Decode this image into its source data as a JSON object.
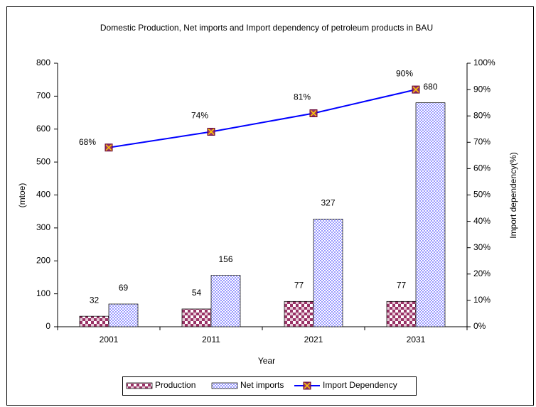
{
  "chart_data": {
    "type": "bar",
    "title": "Domestic Production, Net imports and Import dependency of petroleum products in BAU",
    "categories": [
      "2001",
      "2011",
      "2021",
      "2031"
    ],
    "series": [
      {
        "name": "Production",
        "color": "#993366",
        "values": [
          32,
          54,
          77,
          77
        ]
      },
      {
        "name": "Net imports",
        "color": "#9999ff",
        "values": [
          69,
          156,
          327,
          680
        ]
      },
      {
        "name": "Import Dependency",
        "type": "line",
        "axis": "y2",
        "color": "#0000ff",
        "values": [
          68,
          74,
          81,
          90
        ],
        "value_labels": [
          "68%",
          "74%",
          "81%",
          "90%"
        ]
      }
    ],
    "xlabel": "Year",
    "ylabel": "(mtoe)",
    "y2label": "Import dependency(%)",
    "ylim": [
      0,
      800
    ],
    "yticks": [
      0,
      100,
      200,
      300,
      400,
      500,
      600,
      700,
      800
    ],
    "y2lim": [
      0,
      100
    ],
    "y2ticks": [
      {
        "value": 0,
        "label": "0%"
      },
      {
        "value": 10,
        "label": "10%"
      },
      {
        "value": 20,
        "label": "20%"
      },
      {
        "value": 30,
        "label": "30%"
      },
      {
        "value": 40,
        "label": "40%"
      },
      {
        "value": 50,
        "label": "50%"
      },
      {
        "value": 60,
        "label": "60%"
      },
      {
        "value": 70,
        "label": "70%"
      },
      {
        "value": 80,
        "label": "80%"
      },
      {
        "value": 90,
        "label": "90%"
      },
      {
        "value": 100,
        "label": "100%"
      }
    ],
    "legend": "bottom"
  }
}
